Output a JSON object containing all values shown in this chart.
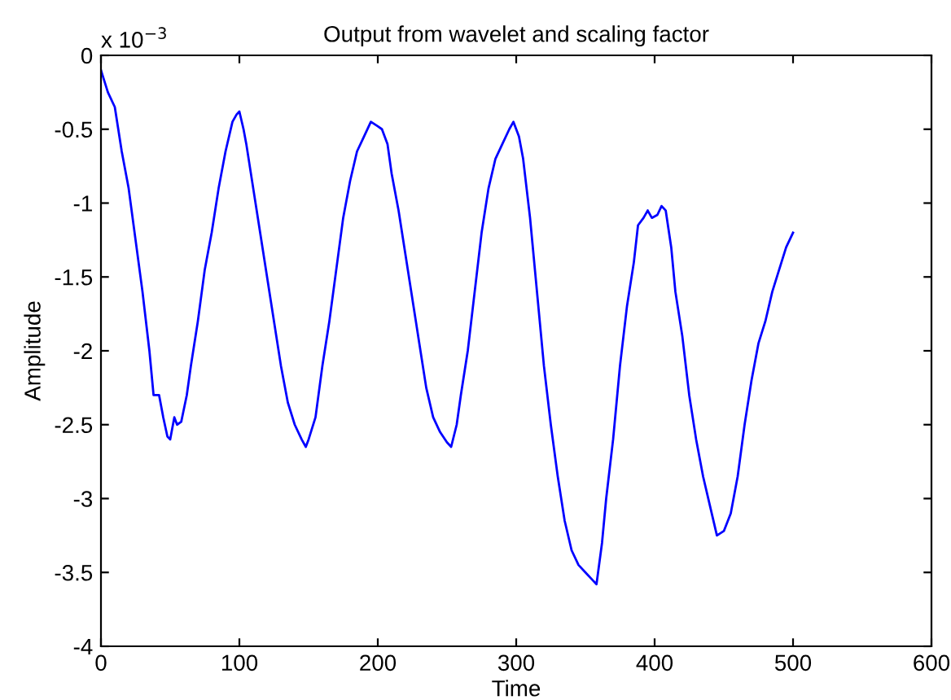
{
  "chart_data": {
    "type": "line",
    "title": "Output from wavelet and scaling factor",
    "xlabel": "Time",
    "ylabel": "Amplitude",
    "annotations": [
      "x 10$^{−3}$"
    ],
    "x": [
      0,
      5,
      10,
      15,
      20,
      25,
      30,
      35,
      38,
      42,
      45,
      48,
      50,
      53,
      55,
      58,
      62,
      65,
      70,
      75,
      80,
      85,
      90,
      95,
      98,
      100,
      103,
      105,
      110,
      115,
      120,
      125,
      130,
      135,
      140,
      145,
      148,
      150,
      155,
      160,
      165,
      170,
      175,
      180,
      185,
      190,
      195,
      200,
      203,
      207,
      210,
      215,
      220,
      225,
      230,
      235,
      240,
      245,
      250,
      253,
      257,
      260,
      265,
      270,
      275,
      280,
      285,
      290,
      295,
      298,
      302,
      305,
      310,
      315,
      320,
      325,
      330,
      335,
      340,
      345,
      350,
      355,
      358,
      362,
      365,
      370,
      375,
      380,
      385,
      388,
      392,
      395,
      398,
      402,
      405,
      408,
      412,
      415,
      420,
      425,
      430,
      435,
      440,
      445,
      450,
      455,
      460,
      465,
      470,
      475,
      480,
      485,
      490,
      495,
      500
    ],
    "series": [
      {
        "color": "#0000ff",
        "values": [
          -0.1,
          -0.25,
          -0.35,
          -0.65,
          -0.9,
          -1.25,
          -1.6,
          -2.0,
          -2.3,
          -2.3,
          -2.45,
          -2.58,
          -2.6,
          -2.45,
          -2.5,
          -2.48,
          -2.3,
          -2.1,
          -1.8,
          -1.45,
          -1.2,
          -0.9,
          -0.65,
          -0.45,
          -0.4,
          -0.38,
          -0.5,
          -0.6,
          -0.9,
          -1.2,
          -1.5,
          -1.8,
          -2.1,
          -2.35,
          -2.5,
          -2.6,
          -2.65,
          -2.6,
          -2.45,
          -2.1,
          -1.8,
          -1.45,
          -1.1,
          -0.85,
          -0.65,
          -0.55,
          -0.45,
          -0.48,
          -0.5,
          -0.6,
          -0.8,
          -1.05,
          -1.35,
          -1.65,
          -1.95,
          -2.25,
          -2.45,
          -2.55,
          -2.62,
          -2.65,
          -2.5,
          -2.3,
          -2.0,
          -1.6,
          -1.2,
          -0.9,
          -0.7,
          -0.6,
          -0.5,
          -0.45,
          -0.55,
          -0.7,
          -1.1,
          -1.6,
          -2.1,
          -2.5,
          -2.85,
          -3.15,
          -3.35,
          -3.45,
          -3.5,
          -3.55,
          -3.58,
          -3.3,
          -3.0,
          -2.6,
          -2.1,
          -1.7,
          -1.4,
          -1.15,
          -1.1,
          -1.05,
          -1.1,
          -1.08,
          -1.02,
          -1.05,
          -1.3,
          -1.6,
          -1.9,
          -2.3,
          -2.6,
          -2.85,
          -3.05,
          -3.25,
          -3.22,
          -3.1,
          -2.85,
          -2.5,
          -2.2,
          -1.95,
          -1.8,
          -1.6,
          -1.45,
          -1.3,
          -1.2
        ]
      }
    ],
    "xlim": [
      0,
      600
    ],
    "xticks": [
      0,
      100,
      200,
      300,
      400,
      500,
      600
    ],
    "ylim": [
      -4,
      0
    ],
    "yticks": [
      -4,
      -3.5,
      -3,
      -2.5,
      -2,
      -1.5,
      -1,
      -0.5,
      0
    ],
    "grid": false,
    "legend": false,
    "marker": "none",
    "line_style": "solid"
  }
}
